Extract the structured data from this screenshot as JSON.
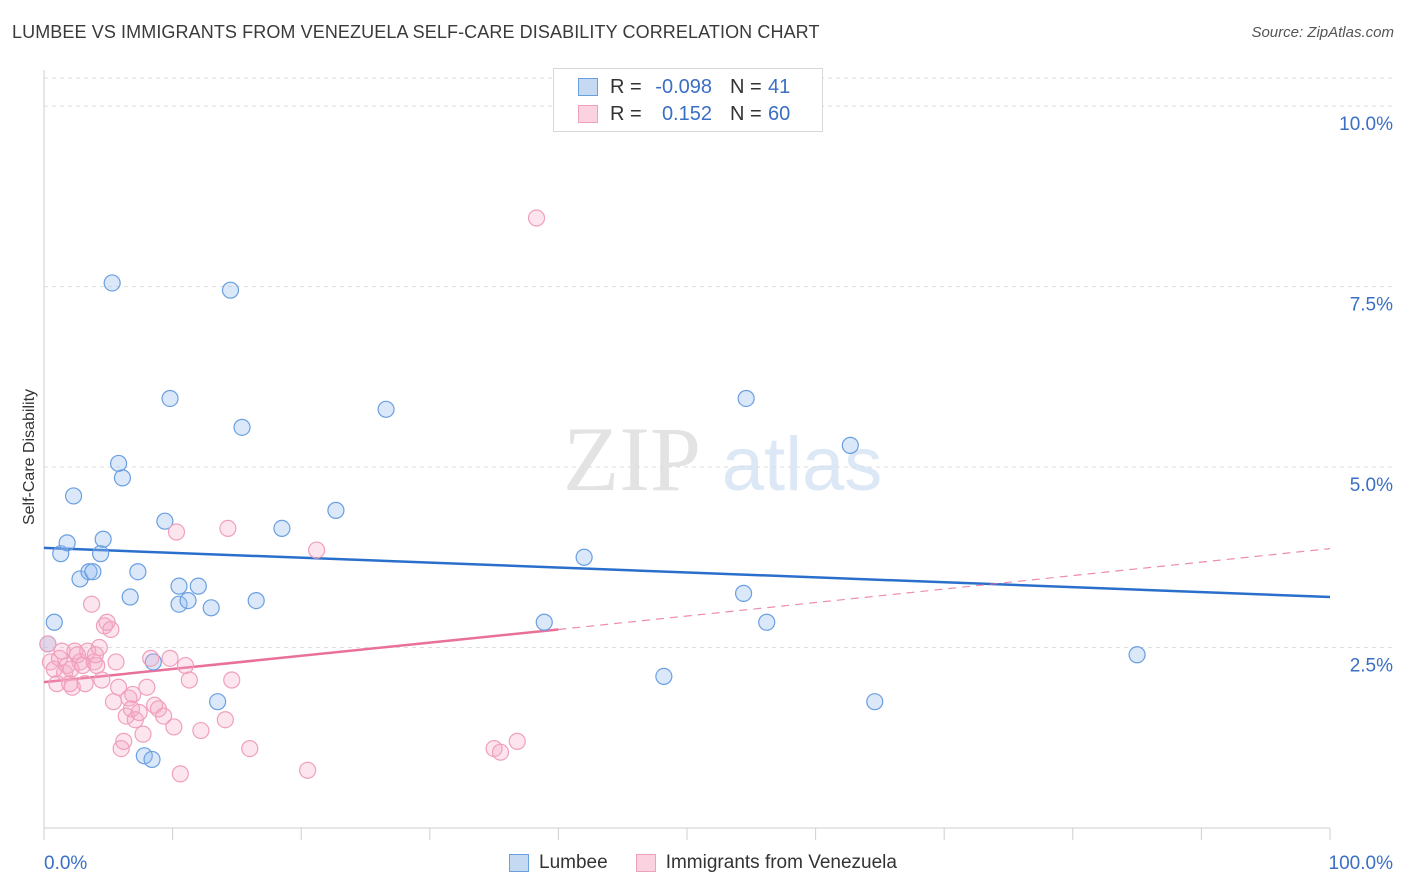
{
  "title": "LUMBEE VS IMMIGRANTS FROM VENEZUELA SELF-CARE DISABILITY CORRELATION CHART",
  "source": "Source: ZipAtlas.com",
  "watermark": {
    "zip": "ZIP",
    "atlas": "atlas"
  },
  "legend": {
    "rows": [
      {
        "r_label": "R =",
        "r_value": "-0.098",
        "n_label": "N =",
        "n_value": "41"
      },
      {
        "r_label": "R =",
        "r_value": "0.152",
        "n_label": "N =",
        "n_value": "60"
      }
    ]
  },
  "chart_data": {
    "type": "scatter",
    "title": "LUMBEE VS IMMIGRANTS FROM VENEZUELA SELF-CARE DISABILITY CORRELATION CHART",
    "xlabel": "",
    "ylabel": "Self-Care Disability",
    "xlim": [
      0,
      100
    ],
    "ylim": [
      0,
      10.5
    ],
    "x_tick_labels": [
      "0.0%",
      "100.0%"
    ],
    "y_ticks": [
      2.5,
      5.0,
      7.5,
      10.0
    ],
    "y_tick_labels": [
      "2.5%",
      "5.0%",
      "7.5%",
      "10.0%"
    ],
    "grid": "horizontal dashed",
    "legend_position": "top-center",
    "colors": {
      "lumbee": "#6a9fe0",
      "venezuela": "#f0a0bb",
      "lumbee_line": "#2b6fcc",
      "venezuela_line": "#e8709a"
    },
    "series": [
      {
        "name": "Lumbee",
        "points": [
          [
            0.8,
            2.85
          ],
          [
            1.3,
            3.8
          ],
          [
            1.8,
            3.95
          ],
          [
            2.3,
            4.6
          ],
          [
            2.8,
            3.45
          ],
          [
            3.5,
            3.55
          ],
          [
            3.8,
            3.55
          ],
          [
            4.4,
            3.8
          ],
          [
            4.6,
            4.0
          ],
          [
            5.3,
            7.55
          ],
          [
            5.8,
            5.05
          ],
          [
            6.1,
            4.85
          ],
          [
            6.7,
            3.2
          ],
          [
            7.3,
            3.55
          ],
          [
            7.8,
            1.0
          ],
          [
            8.4,
            0.95
          ],
          [
            8.5,
            2.3
          ],
          [
            9.4,
            4.25
          ],
          [
            9.8,
            5.95
          ],
          [
            10.5,
            3.1
          ],
          [
            10.5,
            3.35
          ],
          [
            11.2,
            3.15
          ],
          [
            12.0,
            3.35
          ],
          [
            13.0,
            3.05
          ],
          [
            13.5,
            1.75
          ],
          [
            14.5,
            7.45
          ],
          [
            15.4,
            5.55
          ],
          [
            16.5,
            3.15
          ],
          [
            18.5,
            4.15
          ],
          [
            22.7,
            4.4
          ],
          [
            26.6,
            5.8
          ],
          [
            38.9,
            2.85
          ],
          [
            42.0,
            3.75
          ],
          [
            48.2,
            2.1
          ],
          [
            54.4,
            3.25
          ],
          [
            54.6,
            5.95
          ],
          [
            56.2,
            2.85
          ],
          [
            62.7,
            5.3
          ],
          [
            64.6,
            1.75
          ],
          [
            85.0,
            2.4
          ],
          [
            0.3,
            2.55
          ]
        ]
      },
      {
        "name": "Immigrants from Venezuela",
        "points": [
          [
            0.3,
            2.55
          ],
          [
            0.5,
            2.3
          ],
          [
            0.8,
            2.2
          ],
          [
            1.0,
            2.0
          ],
          [
            1.2,
            2.35
          ],
          [
            1.4,
            2.45
          ],
          [
            1.6,
            2.15
          ],
          [
            1.8,
            2.25
          ],
          [
            2.0,
            2.0
          ],
          [
            2.2,
            1.95
          ],
          [
            2.4,
            2.45
          ],
          [
            2.6,
            2.4
          ],
          [
            2.8,
            2.3
          ],
          [
            3.0,
            2.25
          ],
          [
            3.2,
            2.0
          ],
          [
            3.4,
            2.45
          ],
          [
            3.7,
            3.1
          ],
          [
            3.9,
            2.3
          ],
          [
            4.1,
            2.25
          ],
          [
            4.3,
            2.5
          ],
          [
            4.5,
            2.05
          ],
          [
            4.7,
            2.8
          ],
          [
            4.9,
            2.85
          ],
          [
            5.2,
            2.75
          ],
          [
            5.4,
            1.75
          ],
          [
            5.6,
            2.3
          ],
          [
            5.8,
            1.95
          ],
          [
            6.0,
            1.1
          ],
          [
            6.2,
            1.2
          ],
          [
            6.4,
            1.55
          ],
          [
            6.6,
            1.8
          ],
          [
            6.8,
            1.65
          ],
          [
            7.1,
            1.5
          ],
          [
            7.4,
            1.6
          ],
          [
            7.7,
            1.3
          ],
          [
            8.0,
            1.95
          ],
          [
            8.3,
            2.35
          ],
          [
            8.6,
            1.7
          ],
          [
            8.9,
            1.65
          ],
          [
            9.3,
            1.55
          ],
          [
            9.8,
            2.35
          ],
          [
            10.1,
            1.4
          ],
          [
            10.3,
            4.1
          ],
          [
            10.6,
            0.75
          ],
          [
            11.0,
            2.25
          ],
          [
            11.3,
            2.05
          ],
          [
            12.2,
            1.35
          ],
          [
            14.1,
            1.5
          ],
          [
            14.3,
            4.15
          ],
          [
            14.6,
            2.05
          ],
          [
            16.0,
            1.1
          ],
          [
            20.5,
            0.8
          ],
          [
            21.2,
            3.85
          ],
          [
            35.0,
            1.1
          ],
          [
            35.5,
            1.05
          ],
          [
            36.8,
            1.2
          ],
          [
            38.3,
            8.45
          ],
          [
            2.1,
            2.2
          ],
          [
            4.0,
            2.4
          ],
          [
            6.9,
            1.85
          ]
        ]
      }
    ],
    "trend_lines": [
      {
        "name": "Lumbee",
        "x": [
          0,
          100
        ],
        "y": [
          3.88,
          3.2
        ]
      },
      {
        "name": "Immigrants from Venezuela",
        "x": [
          0,
          40
        ],
        "y": [
          2.02,
          2.75
        ],
        "dashed_extension_to": [
          100,
          3.87
        ]
      }
    ]
  },
  "bottom_legend": [
    {
      "label": "Lumbee"
    },
    {
      "label": "Immigrants from Venezuela"
    }
  ]
}
